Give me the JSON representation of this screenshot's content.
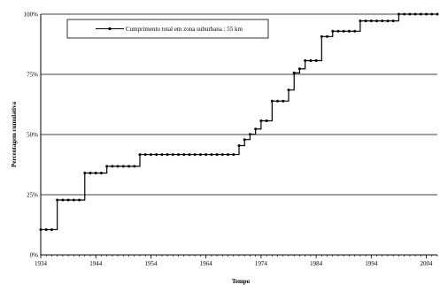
{
  "chart_data": {
    "type": "line",
    "title": "",
    "xlabel": "Tempo",
    "ylabel": "Percentagem cumulativa",
    "xlim": [
      1934,
      2006
    ],
    "ylim": [
      0,
      100
    ],
    "x_ticks": [
      1934,
      1944,
      1954,
      1964,
      1974,
      1984,
      1994,
      2004
    ],
    "y_ticks": [
      0,
      25,
      50,
      75,
      100
    ],
    "y_tick_labels": [
      "0%",
      "25%",
      "50%",
      "75%",
      "100%"
    ],
    "x_tick_labels": [
      "1934",
      "1944",
      "1954",
      "1964",
      "1974",
      "1984",
      "1994",
      "2004"
    ],
    "grid": "horizontal",
    "legend_position": "top-left",
    "series": [
      {
        "name": "Cumprimento total em zona suburbana : 55 km",
        "color": "#000000",
        "marker": "circle",
        "line_style": "step",
        "x": [
          1934,
          1935,
          1936,
          1937,
          1938,
          1939,
          1940,
          1941,
          1942,
          1943,
          1944,
          1945,
          1946,
          1947,
          1948,
          1949,
          1950,
          1951,
          1952,
          1953,
          1954,
          1955,
          1956,
          1957,
          1958,
          1959,
          1960,
          1961,
          1962,
          1963,
          1964,
          1965,
          1966,
          1967,
          1968,
          1969,
          1970,
          1971,
          1972,
          1973,
          1974,
          1975,
          1976,
          1977,
          1978,
          1979,
          1980,
          1981,
          1982,
          1983,
          1984,
          1985,
          1986,
          1987,
          1988,
          1989,
          1990,
          1991,
          1992,
          1993,
          1994,
          1995,
          1996,
          1997,
          1998,
          1999,
          2000,
          2001,
          2002,
          2003,
          2004,
          2005,
          2006
        ],
        "values": [
          10.5,
          10.5,
          10.5,
          22.8,
          22.8,
          22.8,
          22.8,
          22.8,
          34,
          34,
          34,
          34,
          36.8,
          36.8,
          36.8,
          36.8,
          36.8,
          36.8,
          41.7,
          41.7,
          41.7,
          41.7,
          41.7,
          41.7,
          41.7,
          41.7,
          41.7,
          41.7,
          41.7,
          41.7,
          41.7,
          41.7,
          41.7,
          41.7,
          41.7,
          41.7,
          45.4,
          47.9,
          50.1,
          52.3,
          55.7,
          55.7,
          63.9,
          63.9,
          63.9,
          68.5,
          75.6,
          77.3,
          80.7,
          80.7,
          80.7,
          90.7,
          90.7,
          92.9,
          92.9,
          92.9,
          92.9,
          92.9,
          97.2,
          97.2,
          97.2,
          97.2,
          97.2,
          97.2,
          97.2,
          100,
          100,
          100,
          100,
          100,
          100,
          100,
          100
        ]
      }
    ]
  }
}
